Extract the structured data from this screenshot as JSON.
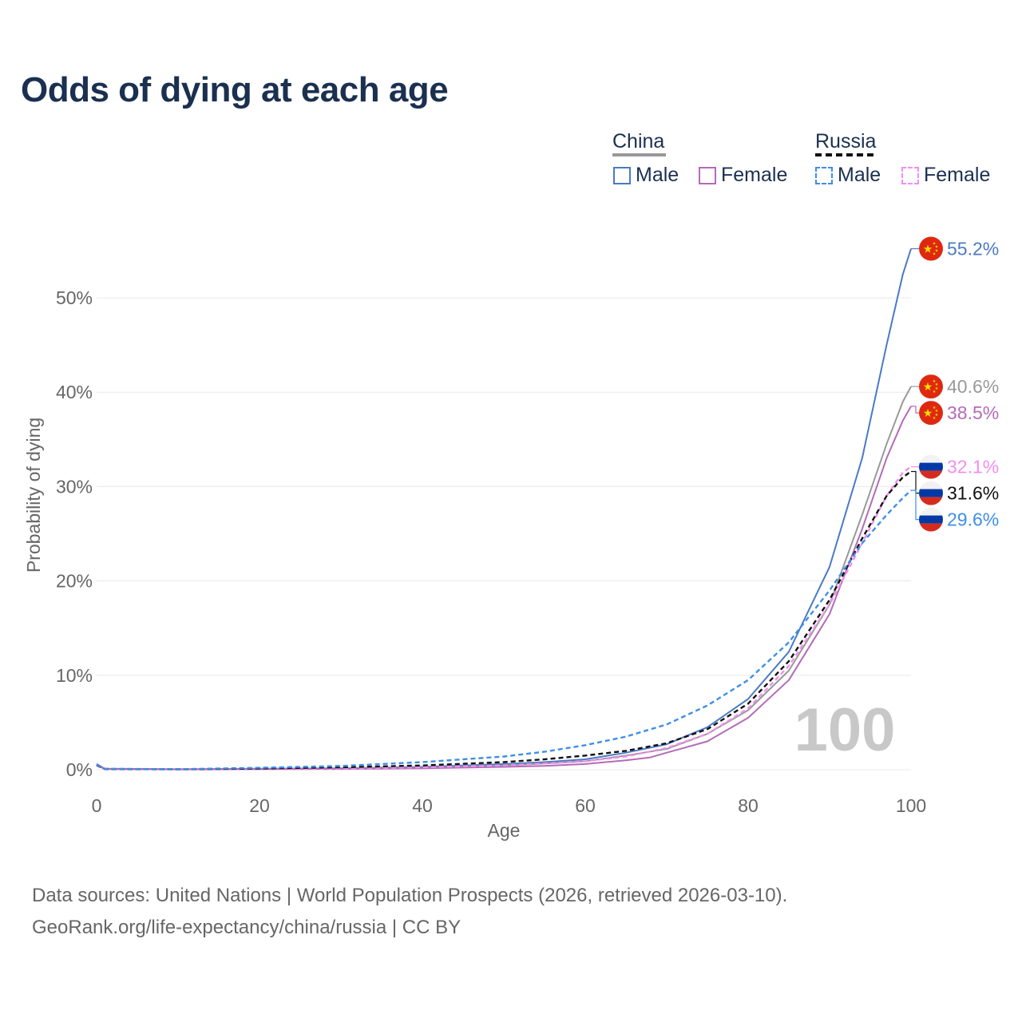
{
  "title": "Odds of dying at each age",
  "legend": {
    "groups": [
      {
        "name": "China",
        "underline_color": "#999999",
        "underline_style": "solid",
        "items": [
          {
            "label": "Male",
            "color": "#4a7ac4",
            "style": "solid"
          },
          {
            "label": "Female",
            "color": "#b36bb8",
            "style": "solid"
          }
        ]
      },
      {
        "name": "Russia",
        "underline_color": "#111111",
        "underline_style": "dashed",
        "items": [
          {
            "label": "Male",
            "color": "#3f8ee8",
            "style": "dashed"
          },
          {
            "label": "Female",
            "color": "#f28ef0",
            "style": "dashed"
          }
        ]
      }
    ]
  },
  "watermark": "100",
  "chart_data": {
    "type": "line",
    "title": "Odds of dying at each age",
    "xlabel": "Age",
    "ylabel": "Probability of dying",
    "xlim": [
      0,
      100
    ],
    "ylim": [
      0,
      55
    ],
    "xticks": [
      0,
      20,
      40,
      60,
      80,
      100
    ],
    "xtick_labels": [
      "0",
      "20",
      "40",
      "60",
      "80",
      "100"
    ],
    "yticks": [
      0,
      10,
      20,
      30,
      40,
      50
    ],
    "ytick_labels": [
      "0%",
      "10%",
      "20%",
      "30%",
      "40%",
      "50%"
    ],
    "grid": true,
    "series": [
      {
        "name": "China Male",
        "country": "China",
        "color": "#4a7ac4",
        "dash": false,
        "end_label": "55.2%",
        "end_value": 55.2,
        "x": [
          0,
          1,
          10,
          20,
          30,
          40,
          50,
          55,
          60,
          65,
          70,
          75,
          80,
          85,
          90,
          94,
          97,
          99,
          100
        ],
        "y": [
          0.6,
          0.1,
          0.05,
          0.1,
          0.15,
          0.3,
          0.6,
          0.8,
          1.1,
          1.8,
          2.7,
          4.5,
          7.5,
          12.5,
          21.5,
          33.0,
          45.0,
          52.5,
          55.2
        ]
      },
      {
        "name": "China Both",
        "country": "China",
        "color": "#999999",
        "dash": false,
        "end_label": "40.6%",
        "end_value": 40.6,
        "x": [
          0,
          1,
          10,
          20,
          30,
          40,
          50,
          55,
          60,
          65,
          70,
          75,
          80,
          85,
          90,
          94,
          97,
          99,
          100
        ],
        "y": [
          0.55,
          0.08,
          0.04,
          0.08,
          0.12,
          0.22,
          0.45,
          0.65,
          0.9,
          1.5,
          2.2,
          3.8,
          6.3,
          10.5,
          17.5,
          27.0,
          34.5,
          39.0,
          40.6
        ]
      },
      {
        "name": "China Female",
        "country": "China",
        "color": "#b36bb8",
        "dash": false,
        "end_label": "38.5%",
        "end_value": 38.5,
        "x": [
          0,
          1,
          10,
          20,
          30,
          40,
          50,
          55,
          60,
          65,
          68,
          70,
          75,
          80,
          85,
          90,
          94,
          97,
          99,
          100
        ],
        "y": [
          0.5,
          0.06,
          0.03,
          0.05,
          0.08,
          0.15,
          0.3,
          0.4,
          0.6,
          1.0,
          1.3,
          1.8,
          3.0,
          5.5,
          9.5,
          16.5,
          25.5,
          33.0,
          37.0,
          38.5
        ]
      },
      {
        "name": "Russia Female",
        "country": "Russia",
        "color": "#f28ef0",
        "dash": true,
        "end_label": "32.1%",
        "end_value": 32.1,
        "x": [
          0,
          1,
          10,
          20,
          30,
          40,
          50,
          55,
          60,
          65,
          70,
          75,
          80,
          85,
          90,
          94,
          97,
          99,
          100
        ],
        "y": [
          0.45,
          0.06,
          0.03,
          0.06,
          0.12,
          0.25,
          0.45,
          0.65,
          0.9,
          1.4,
          2.3,
          3.8,
          6.5,
          11.0,
          17.5,
          24.0,
          29.0,
          31.5,
          32.1
        ]
      },
      {
        "name": "Russia Both",
        "country": "Russia",
        "color": "#111111",
        "dash": true,
        "end_label": "31.6%",
        "end_value": 31.6,
        "x": [
          0,
          1,
          10,
          20,
          30,
          40,
          50,
          55,
          60,
          65,
          70,
          75,
          80,
          85,
          90,
          94,
          97,
          99,
          100
        ],
        "y": [
          0.5,
          0.08,
          0.04,
          0.12,
          0.25,
          0.45,
          0.8,
          1.1,
          1.5,
          2.0,
          2.8,
          4.3,
          7.0,
          11.5,
          18.0,
          24.5,
          29.0,
          31.0,
          31.6
        ]
      },
      {
        "name": "Russia Male",
        "country": "Russia",
        "color": "#3f8ee8",
        "dash": true,
        "end_label": "29.6%",
        "end_value": 29.6,
        "x": [
          0,
          1,
          10,
          20,
          30,
          40,
          50,
          55,
          60,
          65,
          70,
          75,
          80,
          85,
          90,
          94,
          97,
          99,
          100
        ],
        "y": [
          0.55,
          0.1,
          0.05,
          0.2,
          0.4,
          0.8,
          1.4,
          1.9,
          2.6,
          3.5,
          4.8,
          6.8,
          9.5,
          13.5,
          19.0,
          24.0,
          27.0,
          28.8,
          29.6
        ]
      }
    ]
  },
  "sources": {
    "line1": "Data sources: United Nations | World Population Prospects (2026, retrieved 2026-03-10).",
    "line2": "GeoRank.org/life-expectancy/china/russia | CC BY"
  }
}
